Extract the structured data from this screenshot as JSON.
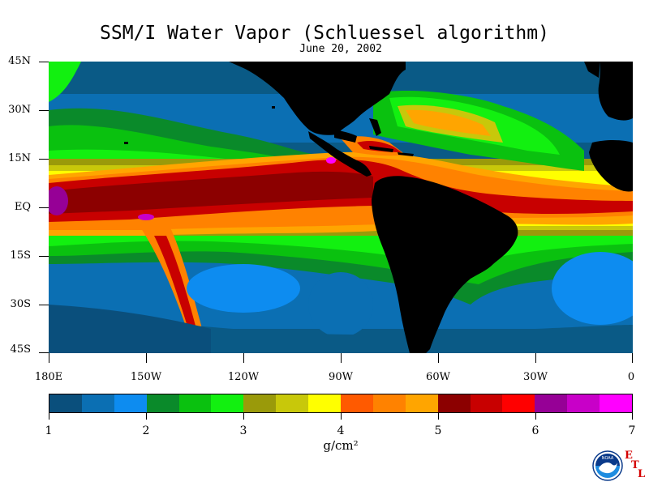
{
  "title": "SSM/I Water Vapor (Schluessel algorithm)",
  "date": "June 20, 2002",
  "lat_labels": [
    "45N",
    "30N",
    "15N",
    "EQ",
    "15S",
    "30S",
    "45S"
  ],
  "lon_labels": [
    "180E",
    "150W",
    "120W",
    "90W",
    "60W",
    "30W",
    "0"
  ],
  "colorbar": {
    "tick_labels": [
      "1",
      "2",
      "3",
      "4",
      "5",
      "6",
      "7"
    ],
    "unit": "g/cm²",
    "colors": [
      "#0a4f7c",
      "#0b6fb3",
      "#0d8cf0",
      "#0a8a2a",
      "#0ac10f",
      "#12f010",
      "#9a9a0a",
      "#c8c80a",
      "#ffff00",
      "#ff5a00",
      "#ff8200",
      "#ffa500",
      "#8c0000",
      "#c80000",
      "#ff0000",
      "#960096",
      "#c800c8",
      "#ff00ff"
    ],
    "range": [
      1,
      7
    ]
  },
  "logo": {
    "emblem": "NOAA",
    "lab_letters": [
      "E",
      "T",
      "L"
    ]
  },
  "colors": {
    "land": "#000000",
    "ocean_dry": "#0a4f7c",
    "itcz": "#c80000"
  }
}
